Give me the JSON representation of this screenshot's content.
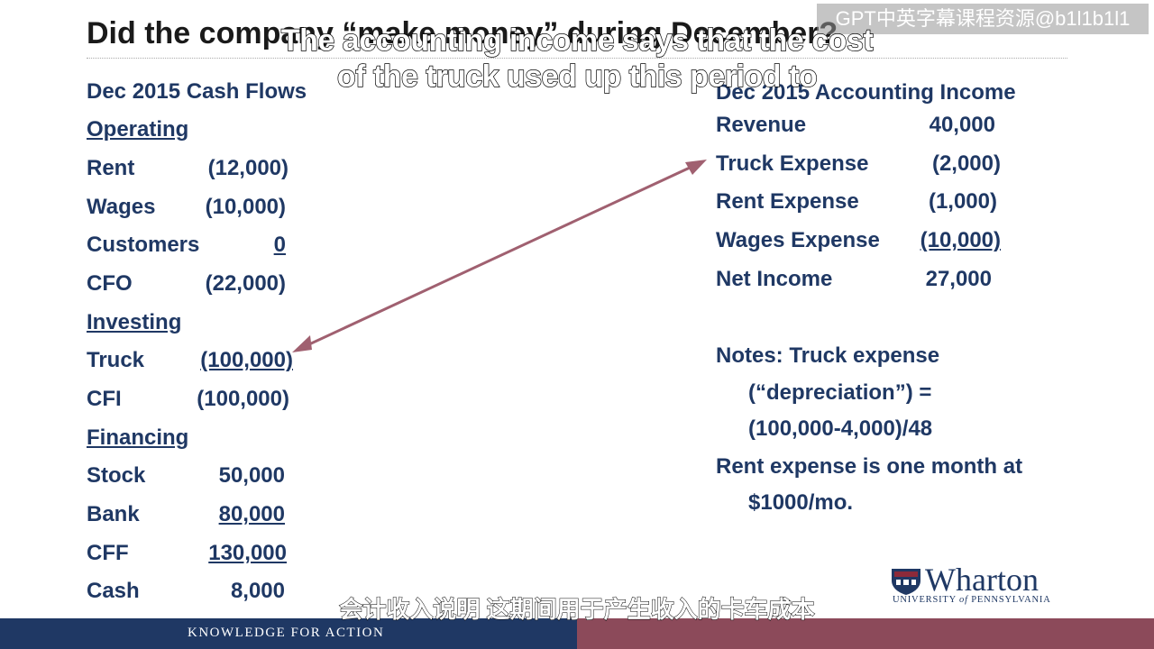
{
  "slide": {
    "title": "Did the company “make money” during December?",
    "watermark": "GPT中英字幕课程资源@b1l1b1l1",
    "caption_en_line1": "The accounting income says that the cost",
    "caption_en_line2": "of the truck used up this period to",
    "caption_cn": "会计收入说明 这期间用于产生收入的卡车成本",
    "footer_tagline": "KNOWLEDGE FOR ACTION",
    "logo": {
      "name": "Wharton",
      "sub_before": "UNIVERSITY ",
      "sub_italic": "of",
      "sub_after": " PENNSYLVANIA"
    },
    "colors": {
      "text": "#1f3864",
      "footer_left": "#1f3864",
      "footer_right": "#8c4a5a",
      "arrow": "#a06070"
    }
  },
  "cash_flows": {
    "heading": "Dec 2015 Cash Flows",
    "operating": {
      "label": "Operating",
      "rows": [
        {
          "label": "Rent",
          "value": "(12,000)"
        },
        {
          "label": "Wages",
          "value": "(10,000)"
        },
        {
          "label": "Customers",
          "value": "0"
        },
        {
          "label": "CFO",
          "value": "(22,000)"
        }
      ]
    },
    "investing": {
      "label": "Investing",
      "rows": [
        {
          "label": "Truck",
          "value": "(100,000)"
        },
        {
          "label": "CFI",
          "value": "(100,000)"
        }
      ]
    },
    "financing": {
      "label": "Financing",
      "rows": [
        {
          "label": "Stock",
          "value": "50,000"
        },
        {
          "label": "Bank",
          "value": "80,000"
        },
        {
          "label": "CFF",
          "value": "130,000"
        },
        {
          "label": "Cash",
          "value": "8,000"
        }
      ]
    }
  },
  "income": {
    "heading": "Dec 2015 Accounting Income",
    "rows": [
      {
        "label": "Revenue",
        "value": "40,000"
      },
      {
        "label": "Truck Expense",
        "value": "(2,000)"
      },
      {
        "label": "Rent Expense",
        "value": "(1,000)"
      },
      {
        "label": "Wages Expense",
        "value": "(10,000)"
      },
      {
        "label": "Net Income",
        "value": "27,000"
      }
    ]
  },
  "notes": {
    "line1": "Notes: Truck expense",
    "line2": "(“depreciation”) =",
    "line3": "(100,000-4,000)/48",
    "line4": "Rent expense is one month at",
    "line5": "$1000/mo."
  }
}
